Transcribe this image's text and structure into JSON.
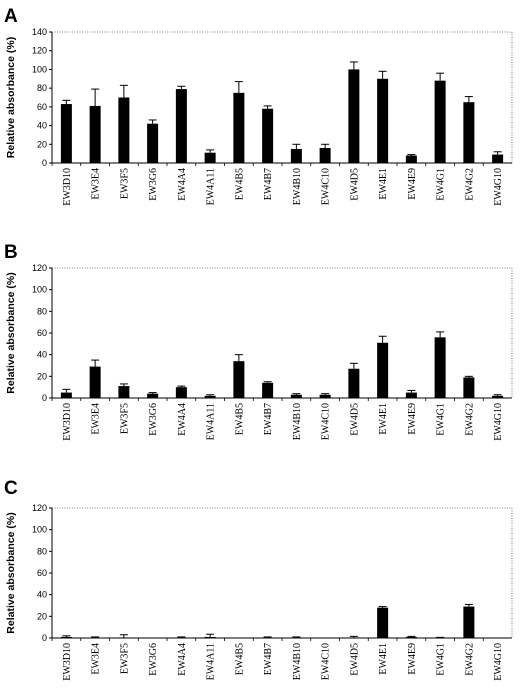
{
  "chart_data": [
    {
      "panel": "A",
      "type": "bar",
      "ylabel": "Relative absorbance (%)",
      "ylim": [
        0,
        140
      ],
      "yticks": [
        0,
        20,
        40,
        60,
        80,
        100,
        120,
        140
      ],
      "categories": [
        "EW3D10",
        "EW3E4",
        "EW3F5",
        "EW3G6",
        "EW4A4",
        "EW4A11",
        "EW4B5",
        "EW4B7",
        "EW4B10",
        "EW4C10",
        "EW4D5",
        "EW4E1",
        "EW4E9",
        "EW4G1",
        "EW4G2",
        "EW4G10"
      ],
      "values": [
        63,
        61,
        70,
        42,
        79,
        11,
        75,
        58,
        15,
        16,
        100,
        90,
        8,
        88,
        65,
        9
      ],
      "errors": [
        4,
        18,
        13,
        4,
        3,
        3,
        12,
        3,
        5,
        4,
        8,
        8,
        1,
        8,
        6,
        3
      ],
      "grid": false
    },
    {
      "panel": "B",
      "type": "bar",
      "ylabel": "Relative absorbance (%)",
      "ylim": [
        0,
        120
      ],
      "yticks": [
        0,
        20,
        40,
        60,
        80,
        100,
        120
      ],
      "categories": [
        "EW3D10",
        "EW3E4",
        "EW3F5",
        "EW3G6",
        "EW4A4",
        "EW4A11",
        "EW4B5",
        "EW4B7",
        "EW4B10",
        "EW4C10",
        "EW4D5",
        "EW4E1",
        "EW4E9",
        "EW4G1",
        "EW4G2",
        "EW4G10"
      ],
      "values": [
        5,
        29,
        11,
        4,
        10,
        2,
        34,
        14,
        3,
        3,
        27,
        51,
        5,
        56,
        19,
        2
      ],
      "errors": [
        3,
        6,
        2,
        1,
        1,
        1,
        6,
        1,
        1,
        1,
        5,
        6,
        2,
        5,
        1,
        1
      ],
      "grid": false
    },
    {
      "panel": "C",
      "type": "bar",
      "ylabel": "Relative absorbance (%)",
      "ylim": [
        0,
        120
      ],
      "yticks": [
        0,
        20,
        40,
        60,
        80,
        100,
        120
      ],
      "categories": [
        "EW3D10",
        "EW3E4",
        "EW3F5",
        "EW3G6",
        "EW4A4",
        "EW4A11",
        "EW4B5",
        "EW4B7",
        "EW4B10",
        "EW4C10",
        "EW4D5",
        "EW4E1",
        "EW4E9",
        "EW4G1",
        "EW4G2",
        "EW4G10"
      ],
      "values": [
        1,
        0.5,
        0.5,
        0,
        0.5,
        1,
        0,
        0.5,
        0.5,
        0,
        0.5,
        28,
        1,
        0.3,
        29,
        0
      ],
      "errors": [
        1,
        0.5,
        2.5,
        0,
        0.5,
        2.5,
        0,
        0.5,
        0.5,
        0,
        1,
        1,
        0.5,
        0.3,
        2,
        0
      ],
      "grid": false
    }
  ]
}
